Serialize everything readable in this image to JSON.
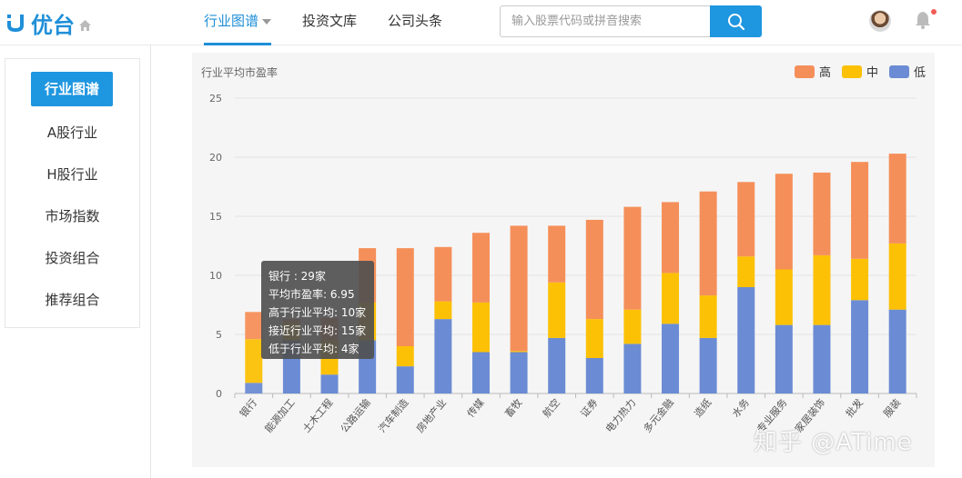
{
  "header": {
    "logo_text": "优台",
    "nav": [
      {
        "label": "行业图谱",
        "active": true
      },
      {
        "label": "投资文库",
        "active": false
      },
      {
        "label": "公司头条",
        "active": false
      }
    ],
    "search_placeholder": "输入股票代码或拼音搜索"
  },
  "sidebar": {
    "items": [
      "行业图谱",
      "A股行业",
      "H股行业",
      "市场指数",
      "投资组合",
      "推荐组合"
    ]
  },
  "chart_data": {
    "type": "bar",
    "stacked": true,
    "title": "行业平均市盈率",
    "ylim": [
      0,
      25
    ],
    "yticks": [
      0,
      5,
      10,
      15,
      20,
      25
    ],
    "grid": true,
    "legend_position": "top-right",
    "categories": [
      "银行",
      "能源加工",
      "土木工程",
      "公路运输",
      "汽车制造",
      "房地产业",
      "传媒",
      "畜牧",
      "航空",
      "证券",
      "电力热力",
      "多元金融",
      "造纸",
      "水务",
      "专业服务",
      "家居装饰",
      "批发",
      "服装"
    ],
    "series": [
      {
        "name": "低",
        "color": "#6b8cd4",
        "values": [
          0.9,
          4.5,
          1.6,
          4.5,
          2.3,
          6.3,
          3.5,
          3.5,
          4.7,
          3.0,
          4.2,
          5.9,
          4.7,
          9.0,
          5.8,
          5.8,
          7.9,
          7.1
        ]
      },
      {
        "name": "中",
        "color": "#fcc105",
        "values": [
          3.7,
          1.5,
          2.9,
          3.2,
          1.7,
          1.5,
          4.2,
          0.1,
          4.7,
          3.3,
          2.9,
          4.3,
          3.6,
          2.6,
          4.7,
          5.9,
          3.5,
          5.6
        ]
      },
      {
        "name": "高",
        "color": "#f58f59",
        "values": [
          2.3,
          0.3,
          1.9,
          4.6,
          8.3,
          4.6,
          5.9,
          10.6,
          4.8,
          8.4,
          8.7,
          6.0,
          8.8,
          6.3,
          8.1,
          7.0,
          8.2,
          7.6
        ]
      }
    ],
    "legend": [
      {
        "label": "高",
        "color": "#f58f59"
      },
      {
        "label": "中",
        "color": "#fcc105"
      },
      {
        "label": "低",
        "color": "#6b8cd4"
      }
    ]
  },
  "tooltip": {
    "lines": [
      "银行 : 29家",
      "平均市盈率: 6.95",
      "高于行业平均: 10家",
      "接近行业平均: 15家",
      "低于行业平均: 4家"
    ]
  },
  "watermark": "知乎 @ATime"
}
